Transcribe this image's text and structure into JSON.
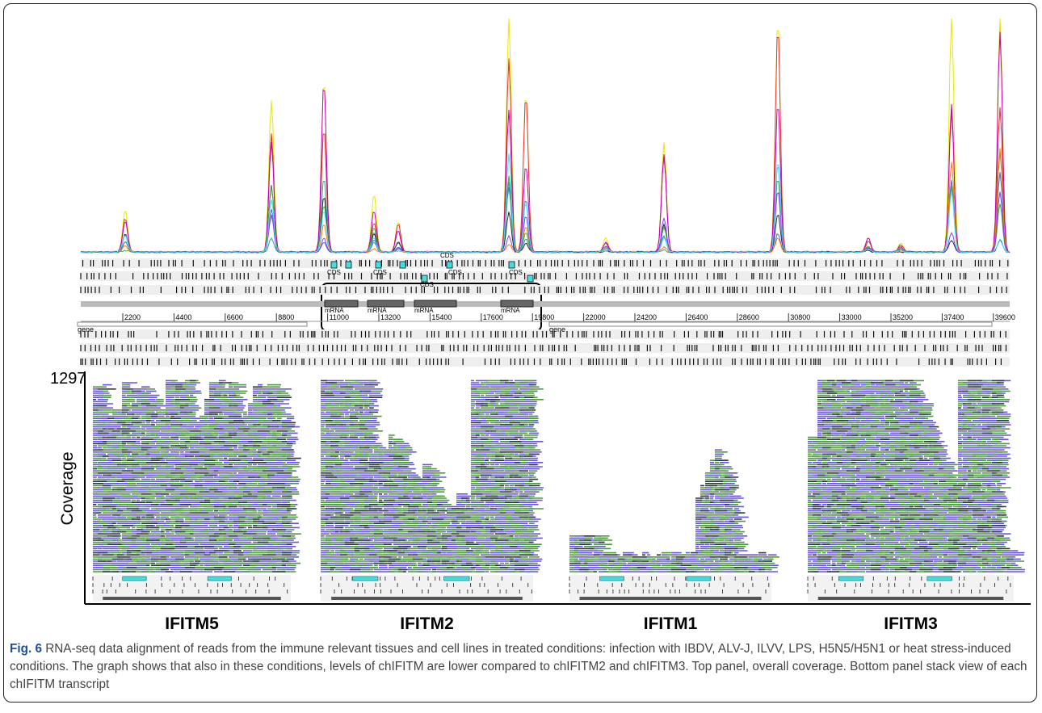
{
  "top_panel": {
    "cds_labels": [
      "CDS",
      "CDS",
      "CDS",
      "CDS",
      "CDS",
      "CDS"
    ],
    "mrna_labels": [
      "mRNA",
      "mRNA",
      "mRNA",
      "mRNA"
    ],
    "coordinates": [
      "2200",
      "4400",
      "6600",
      "8800",
      "11000",
      "13200",
      "15400",
      "17600",
      "19800",
      "22000",
      "24200",
      "26400",
      "28600",
      "30800",
      "33000",
      "35200",
      "37400",
      "39600"
    ],
    "gene_labels": [
      "gene",
      "gene"
    ]
  },
  "bottom_panel": {
    "y_max": "1297",
    "y_label": "Coverage",
    "genes": [
      "IFITM5",
      "IFITM2",
      "IFITM1",
      "IFITM3"
    ]
  },
  "caption": {
    "label": "Fig. 6",
    "text": "RNA-seq data alignment of reads from the immune relevant tissues and cell lines in treated conditions: infection with IBDV, ALV-J, ILVV, LPS, H5N5/H5N1 or heat stress-induced conditions. The graph shows that also in these conditions, levels of chIFITM are lower compared to chIFITM2 and chIFITM3. Top panel, overall coverage. Bottom panel stack view of each chIFITM transcript"
  }
}
